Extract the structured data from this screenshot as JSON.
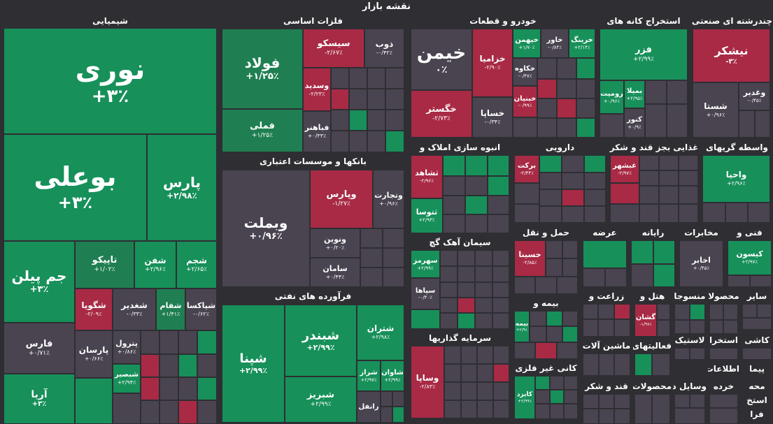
{
  "page_title": "نقشه بازار",
  "sectors": {
    "chem": "شیمیایی",
    "metals": "فلزات اساسی",
    "banks": "بانکها و موسسات اعتباری",
    "refinery": "فرآورده های نفتی",
    "auto": "خودرو و قطعات",
    "mining": "استخراج کانه های",
    "multi": "چندرشته ای صنعتی",
    "mass": "انبوه سازی املاک و",
    "pharma": "دارویی",
    "sugar": "غذایی بجز قند و شکر",
    "brokers": "واسطه گریهای",
    "cement": "سیمان آهک گچ",
    "transport": "حمل و نقل",
    "offer": "عرضه",
    "computer": "رایانه",
    "telecom": "مخابرات",
    "tech": "فنی و",
    "insurance": "بیمه و",
    "agri": "زراعت و",
    "hotel": "هتل و",
    "textile": "منسوجا",
    "products": "محصولا",
    "other": "سایر",
    "invest": "سرمایه گذاریها",
    "nonmetal": "کانی غیر فلزی",
    "machinery": "ماشین آلات",
    "activities": "فعالیتهای",
    "rubber": "لاستیک",
    "extract": "استخرا",
    "tiles": "کاشی",
    "contract": "پیما",
    "products2": "محصولات",
    "devices": "وسایل دستگاهها",
    "info": "اطلاعات",
    "retail": "خرده",
    "sugar2": "قند و شکر",
    "mahe": "محه",
    "extract2": "استخ",
    "farazoo": "فرا"
  },
  "tiles": {
    "nori": {
      "name": "نوری",
      "value": "+۳٪"
    },
    "boali": {
      "name": "بوعلی",
      "value": "+۳٪"
    },
    "pars": {
      "name": "پارس",
      "value": "+۲/۹۸٪"
    },
    "jampilen": {
      "name": "جم پیلن",
      "value": "+۳٪"
    },
    "tapiko": {
      "name": "تاپیکو",
      "value": "+۱/۰۲٪"
    },
    "shafan": {
      "name": "شفن",
      "value": "+۲/۹۶٪"
    },
    "shajam": {
      "name": "شجم",
      "value": "+۲/۶۵٪"
    },
    "shegoya": {
      "name": "شگویا",
      "value": "-۲/۰۹٪"
    },
    "shaghdir": {
      "name": "شغدیر",
      "value": "-۰/۳۳٪"
    },
    "shfam": {
      "name": "شفام",
      "value": "+۱/۴۱٪"
    },
    "shpaksa": {
      "name": "شپاکسا",
      "value": "-۰/۶۲٪"
    },
    "fars": {
      "name": "فارس",
      "value": "+۰/۷۱٪"
    },
    "parsan": {
      "name": "پارسان",
      "value": "+۰/۶۶٪"
    },
    "petrol": {
      "name": "پترول",
      "value": "+۰/۸۶٪"
    },
    "shbasir": {
      "name": "شبصیر",
      "value": "+۲/۹۴٪"
    },
    "arya": {
      "name": "آریا",
      "value": "+۳٪"
    },
    "foolad": {
      "name": "فولاد",
      "value": "+۱/۲۵٪"
    },
    "sisko": {
      "name": "سیسکو",
      "value": "-۲/۶۷٪"
    },
    "zob": {
      "name": "ذوب",
      "value": "-۰/۴۲٪"
    },
    "vasdid": {
      "name": "وسدید",
      "value": "-۲/۲۳٪"
    },
    "fameli": {
      "name": "فملی",
      "value": "+۱/۲۵٪"
    },
    "fabahonar": {
      "name": "فباهنر",
      "value": "+۰/۳۳٪"
    },
    "vabmelat": {
      "name": "وبملت",
      "value": "+۰/۹۶٪"
    },
    "vapars": {
      "name": "وپارس",
      "value": "-۱/۲۷٪"
    },
    "vatejarat": {
      "name": "وتجارت",
      "value": "+۰/۹۶٪"
    },
    "vanovin": {
      "name": "ونوین",
      "value": "+۰/۲۰٪"
    },
    "saman": {
      "name": "سامان",
      "value": "+۰/۴۴٪"
    },
    "shpana": {
      "name": "شپنا",
      "value": "+۲/۹۹٪"
    },
    "shbandar": {
      "name": "شبندر",
      "value": "+۲/۹۹٪"
    },
    "shtran": {
      "name": "شتران",
      "value": "+۲/۹۸٪"
    },
    "shbriz": {
      "name": "شبریز",
      "value": "+۲/۹۹٪"
    },
    "shraz": {
      "name": "شراز",
      "value": "+۲/۹۷٪"
    },
    "shavan": {
      "name": "شاوان",
      "value": "+۲/۹۹٪"
    },
    "ranfal": {
      "name": "رانفل",
      "value": ""
    },
    "khemin": {
      "name": "خیمن",
      "value": "۰٪"
    },
    "khazamia": {
      "name": "خزامیا",
      "value": "-۲/۹۰٪"
    },
    "khegostar": {
      "name": "خگستر",
      "value": "-۲/۷۳٪"
    },
    "khasapa": {
      "name": "خساپا",
      "value": "-۰/۳۴٪"
    },
    "kheyman": {
      "name": "خیهمن",
      "value": "+۱/۷۰٪"
    },
    "khavar": {
      "name": "خاور",
      "value": "-۰/۸۴٪"
    },
    "khring": {
      "name": "خرینگ",
      "value": "+۲/۱۴٪"
    },
    "khkave": {
      "name": "خکاوه",
      "value": "-۰/۴۷٪"
    },
    "khbonyan": {
      "name": "خبنیان",
      "value": "-۰/۹۹٪"
    },
    "fazar": {
      "name": "فزر",
      "value": "+۲/۹۹٪"
    },
    "bemila": {
      "name": "بمیلا",
      "value": "+۲/۹۵٪"
    },
    "romiet": {
      "name": "رومیت",
      "value": "+۰/۹۶٪"
    },
    "konur": {
      "name": "کنور",
      "value": "+۰/۹٪"
    },
    "nishkar": {
      "name": "نیشکر",
      "value": "-۳٪"
    },
    "shasta": {
      "name": "شستا",
      "value": "+۰/۹۶٪"
    },
    "vaghadir": {
      "name": "وغدیر",
      "value": "-۰/۴۵٪"
    },
    "teshahed": {
      "name": "ثشاهد",
      "value": "-۲/۹۶٪"
    },
    "tetusa": {
      "name": "ثتوسا",
      "value": "+۲/۹۳٪"
    },
    "barakat": {
      "name": "برکت",
      "value": "-۲/۴۴٪"
    },
    "ghbshahr": {
      "name": "غبشهر",
      "value": "-۲/۹۷٪"
    },
    "vahya": {
      "name": "واحیا",
      "value": "+۲/۹۶٪"
    },
    "sahrmaz": {
      "name": "سهرمز",
      "value": "+۲/۹۹٪"
    },
    "sepaha": {
      "name": "سپاها",
      "value": "-۰/۴۰٪"
    },
    "hasina": {
      "name": "حسینا",
      "value": "-۲/۸۵٪"
    },
    "akhabar": {
      "name": "اخابر",
      "value": "+۰/۴۵٪"
    },
    "kison": {
      "name": "کیسون",
      "value": "+۲/۹۷٪"
    },
    "vasapa": {
      "name": "وساپا",
      "value": "-۲/۸۳٪"
    },
    "kayzad": {
      "name": "کایزد",
      "value": "+۲/۹۹٪"
    },
    "gashan": {
      "name": "گشان",
      "value": "-۱/۹۷٪"
    },
    "bimehname": {
      "name": "بیمه",
      "value": "+۲/۹۱"
    }
  }
}
